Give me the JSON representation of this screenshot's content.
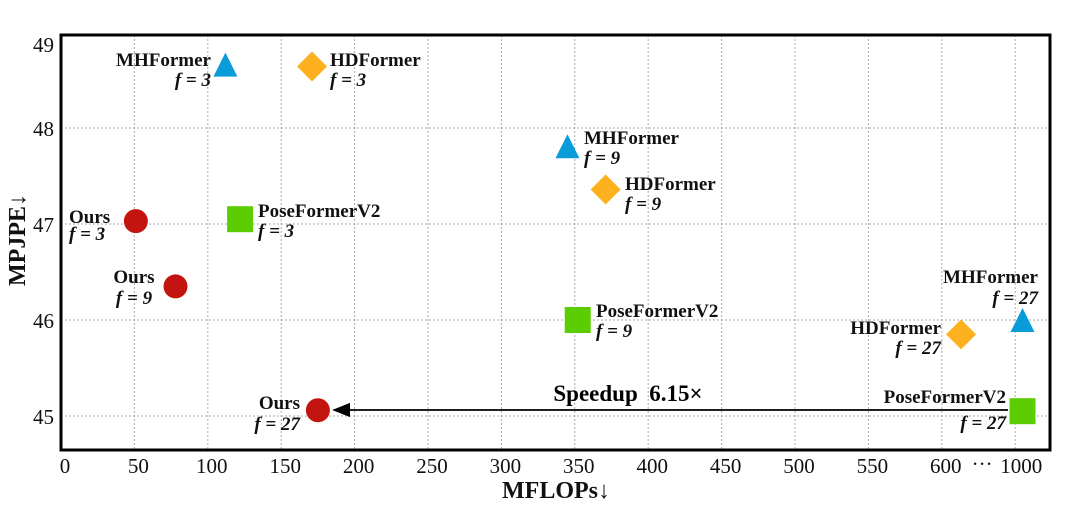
{
  "chart_data": {
    "type": "scatter",
    "xlabel": "MFLOPs↓",
    "ylabel": "MPJPE↓",
    "xlim": [
      0,
      1000
    ],
    "ylim": [
      44.65,
      49
    ],
    "x_axis_break": {
      "from": 600,
      "to": 1000,
      "symbol": "···"
    },
    "x_ticks": [
      "0",
      "50",
      "100",
      "150",
      "200",
      "250",
      "300",
      "350",
      "400",
      "450",
      "500",
      "550",
      "600",
      "1000"
    ],
    "y_ticks": [
      "45",
      "46",
      "47",
      "48",
      "49"
    ],
    "grid": true,
    "series": [
      {
        "name": "Ours",
        "marker": "circle",
        "color": "#C4140F",
        "points": [
          {
            "x": 51,
            "y": 47.03,
            "label": "f = 3"
          },
          {
            "x": 78,
            "y": 46.35,
            "label": "f = 9"
          },
          {
            "x": 175,
            "y": 45.06,
            "label": "f = 27"
          }
        ]
      },
      {
        "name": "MHFormer",
        "marker": "triangle",
        "color": "#0A9CD8",
        "points": [
          {
            "x": 112,
            "y": 48.65,
            "label": "f = 3"
          },
          {
            "x": 345,
            "y": 47.8,
            "label": "f = 9"
          },
          {
            "x": 1040,
            "y": 45.99,
            "label": "f = 27"
          }
        ]
      },
      {
        "name": "HDFormer",
        "marker": "diamond",
        "color": "#FDB11E",
        "points": [
          {
            "x": 171,
            "y": 48.64,
            "label": "f = 3"
          },
          {
            "x": 371,
            "y": 47.36,
            "label": "f = 9"
          },
          {
            "x": 705,
            "y": 45.85,
            "label": "f = 27"
          }
        ]
      },
      {
        "name": "PoseFormerV2",
        "marker": "square",
        "color": "#5CCD00",
        "points": [
          {
            "x": 122,
            "y": 47.05,
            "label": "f = 3"
          },
          {
            "x": 352,
            "y": 46.0,
            "label": "f = 9"
          },
          {
            "x": 1040,
            "y": 45.05,
            "label": "f = 27"
          }
        ]
      }
    ],
    "annotation": {
      "text": "Speedup  6.15×",
      "from": "PoseFormerV2 f = 27",
      "to": "Ours f = 27"
    }
  }
}
